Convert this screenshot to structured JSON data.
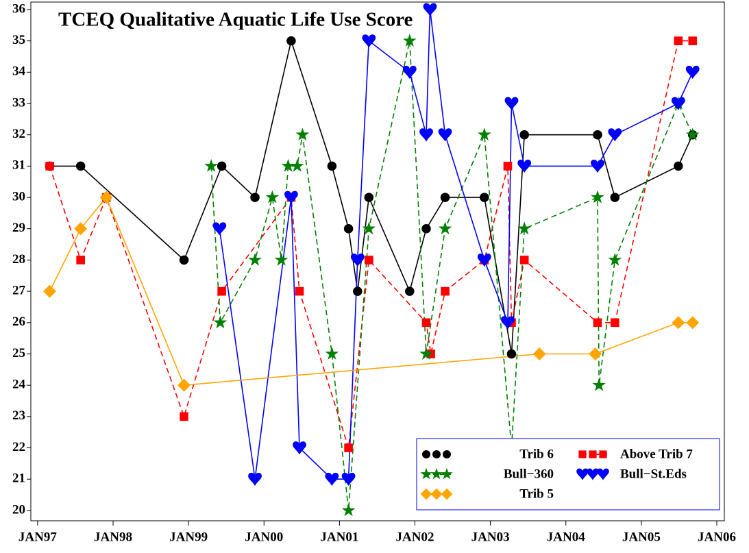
{
  "chart_data": {
    "type": "line",
    "title": "TCEQ Qualitative Aquatic Life Use Score",
    "xlim": [
      1996.91,
      2006.1
    ],
    "xticks": [
      {
        "value": 1997,
        "label": "JAN97"
      },
      {
        "value": 1998,
        "label": "JAN98"
      },
      {
        "value": 1999,
        "label": "JAN99"
      },
      {
        "value": 2000,
        "label": "JAN00"
      },
      {
        "value": 2001,
        "label": "JAN01"
      },
      {
        "value": 2002,
        "label": "JAN02"
      },
      {
        "value": 2003,
        "label": "JAN03"
      },
      {
        "value": 2004,
        "label": "JAN04"
      },
      {
        "value": 2005,
        "label": "JAN05"
      },
      {
        "value": 2006,
        "label": "JAN06"
      }
    ],
    "ylim": [
      19.67,
      36.24
    ],
    "yticks": [
      20,
      21,
      22,
      23,
      24,
      25,
      26,
      27,
      28,
      29,
      30,
      31,
      32,
      33,
      34,
      35,
      36
    ],
    "series": [
      {
        "name": "Trib 6",
        "color": "#000000",
        "marker": "circle",
        "dashed": false,
        "x": [
          1997.16,
          1997.57,
          1998.94,
          1999.44,
          1999.88,
          2000.36,
          2000.9,
          2001.12,
          2001.24,
          2001.39,
          2001.93,
          2002.15,
          2002.4,
          2002.92,
          2003.28,
          2003.45,
          2004.42,
          2004.65,
          2005.49,
          2005.68
        ],
        "values": [
          31,
          31,
          28,
          31,
          30,
          35,
          31,
          29,
          27,
          30,
          27,
          29,
          30,
          30,
          25,
          32,
          32,
          30,
          31,
          32
        ]
      },
      {
        "name": "Above Trib 7",
        "color": "#ff0000",
        "marker": "square",
        "dashed": true,
        "x": [
          1997.16,
          1997.57,
          1997.91,
          1998.94,
          1999.44,
          2000.36,
          2000.47,
          2001.12,
          2001.39,
          2002.15,
          2002.21,
          2002.4,
          2002.92,
          2003.23,
          2003.28,
          2003.45,
          2004.42,
          2004.65,
          2005.49,
          2005.68
        ],
        "values": [
          31,
          28,
          30,
          23,
          27,
          30,
          27,
          22,
          28,
          26,
          25,
          27,
          28,
          31,
          26,
          28,
          26,
          26,
          35,
          35
        ]
      },
      {
        "name": "Bull−360",
        "color": "#008000",
        "marker": "star",
        "dashed": true,
        "x": [
          1999.3,
          1999.42,
          1999.88,
          2000.11,
          2000.23,
          2000.32,
          2000.44,
          2000.51,
          2000.9,
          2001.12,
          2001.39,
          2001.93,
          2002.15,
          2002.4,
          2002.92,
          2003.28,
          2003.45,
          2004.42,
          2004.44,
          2004.65,
          2005.49,
          2005.68
        ],
        "values": [
          31,
          26,
          28,
          30,
          28,
          31,
          31,
          32,
          25,
          20,
          29,
          35,
          25,
          29,
          32,
          22,
          29,
          30,
          24,
          28,
          33,
          32
        ]
      },
      {
        "name": "Bull−St.Eds",
        "color": "#0000ff",
        "marker": "heart",
        "dashed": false,
        "x": [
          1999.41,
          1999.88,
          2000.36,
          2000.47,
          2000.9,
          2001.12,
          2001.24,
          2001.39,
          2001.93,
          2002.15,
          2002.2,
          2002.4,
          2002.92,
          2003.23,
          2003.28,
          2003.45,
          2004.42,
          2004.65,
          2005.49,
          2005.68
        ],
        "values": [
          29,
          21,
          30,
          22,
          21,
          21,
          28,
          35,
          34,
          32,
          36,
          32,
          28,
          26,
          33,
          31,
          31,
          32,
          33,
          34
        ]
      },
      {
        "name": "Trib 5",
        "color": "#ffa500",
        "marker": "diamond",
        "dashed": false,
        "x": [
          1997.16,
          1997.57,
          1997.91,
          1998.94,
          2003.65,
          2004.39,
          2005.49,
          2005.68
        ],
        "values": [
          27,
          29,
          30,
          24,
          25,
          25,
          26,
          26
        ]
      }
    ]
  }
}
